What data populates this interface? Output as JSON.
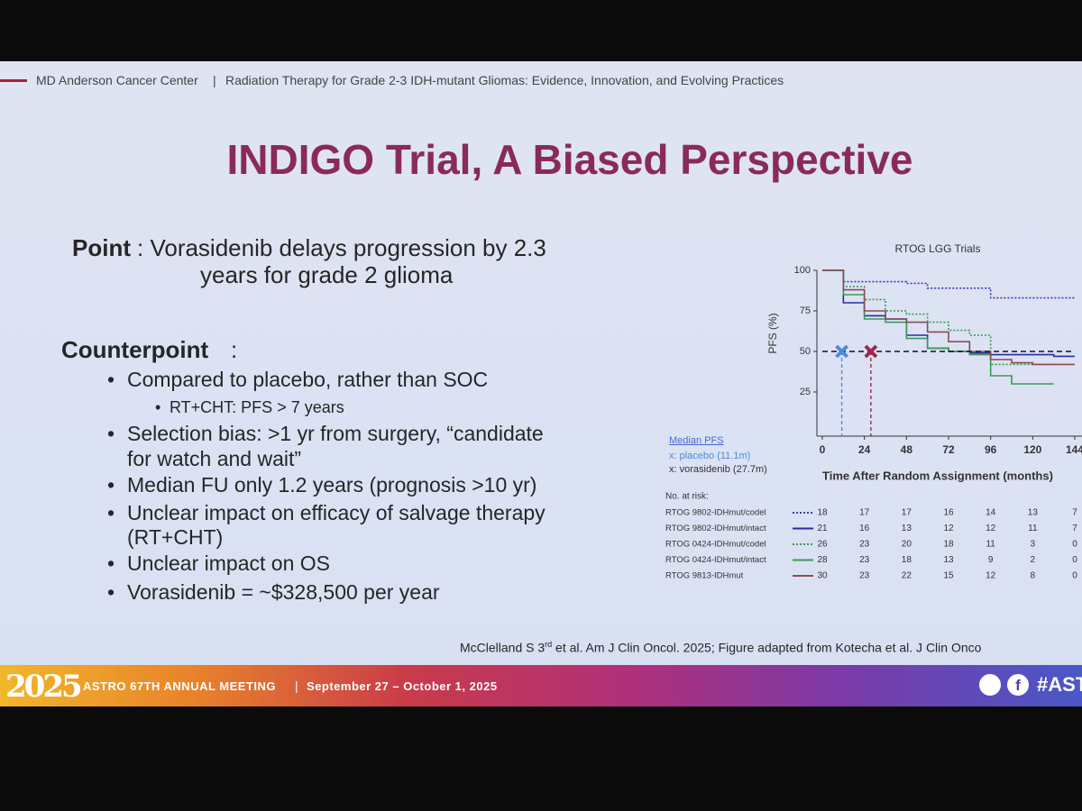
{
  "header": {
    "org": "MD Anderson Cancer Center",
    "separator": "|",
    "course": "Radiation Therapy for Grade 2-3 IDH-mutant Gliomas: Evidence, Innovation, and Evolving Practices"
  },
  "title": "INDIGO Trial, A Biased Perspective",
  "point": {
    "label": "Point",
    "lines": [
      ": Vorasidenib delays progression by 2.3",
      "years for grade 2 glioma"
    ]
  },
  "counterpoint": {
    "label": "Counterpoint",
    "colon": ":",
    "bullets": [
      {
        "lines": [
          "Compared to placebo, rather than SOC"
        ],
        "sub": [
          "RT+CHT: PFS > 7 years"
        ]
      },
      {
        "lines": [
          "Selection bias: >1 yr from surgery, “candidate",
          "for watch and wait”"
        ]
      },
      {
        "lines": [
          "Median FU only 1.2 years (prognosis >10 yr)"
        ]
      },
      {
        "lines": [
          "Unclear impact on efficacy of salvage therapy",
          "(RT+CHT)"
        ]
      },
      {
        "lines": [
          "Unclear impact on OS"
        ]
      },
      {
        "lines": [
          "Vorasidenib = ~$328,500 per year"
        ]
      }
    ]
  },
  "figure": {
    "title": "RTOG LGG Trials",
    "ylabel": "PFS (%)",
    "xlabel": "Time After Random Assignment (months)",
    "ylim": [
      0,
      100
    ],
    "yticks": [
      25,
      50,
      75,
      100
    ],
    "xlim": [
      0,
      144
    ],
    "xticks": [
      0,
      24,
      48,
      72,
      96,
      120,
      144
    ],
    "x": [
      0,
      12,
      24,
      36,
      48,
      60,
      72,
      84,
      96,
      108,
      120,
      132,
      144
    ],
    "series": [
      {
        "name": "RTOG 9802-IDHmut/codel",
        "color": "#3a3ab8",
        "dash": "2 2",
        "values": [
          100,
          93,
          93,
          93,
          92,
          89,
          89,
          89,
          83,
          83,
          83,
          83,
          83
        ],
        "at_risk": [
          "18",
          "17",
          "17",
          "16",
          "14",
          "13",
          "7"
        ]
      },
      {
        "name": "RTOG 9802-IDHmut/intact",
        "color": "#2a2aa8",
        "dash": "",
        "values": [
          100,
          80,
          72,
          70,
          60,
          52,
          50,
          49,
          48,
          48,
          48,
          47,
          47
        ],
        "at_risk": [
          "21",
          "16",
          "13",
          "12",
          "12",
          "11",
          "7"
        ]
      },
      {
        "name": "RTOG 0424-IDHmut/codel",
        "color": "#3a9a4a",
        "dash": "2 2",
        "values": [
          100,
          90,
          82,
          75,
          73,
          68,
          63,
          60,
          42,
          42,
          42,
          42,
          null
        ],
        "at_risk": [
          "26",
          "23",
          "20",
          "18",
          "11",
          "3",
          "0"
        ]
      },
      {
        "name": "RTOG 0424-IDHmut/intact",
        "color": "#3a9a5a",
        "dash": "",
        "values": [
          100,
          85,
          70,
          68,
          58,
          52,
          50,
          48,
          35,
          30,
          30,
          30,
          null
        ],
        "at_risk": [
          "28",
          "23",
          "18",
          "13",
          "9",
          "2",
          "0"
        ]
      },
      {
        "name": "RTOG 9813-IDHmut",
        "color": "#8a4a5a",
        "dash": "",
        "values": [
          100,
          88,
          75,
          70,
          68,
          62,
          56,
          50,
          45,
          43,
          42,
          42,
          42
        ],
        "at_risk": [
          "30",
          "23",
          "22",
          "15",
          "12",
          "8",
          "0"
        ]
      }
    ],
    "at_risk_label": "No. at risk:",
    "median": {
      "title": "Median PFS",
      "reference": 50,
      "markers": [
        {
          "label": "x: placebo (11.1m)",
          "x": 11.1,
          "color": "#4a8ae0"
        },
        {
          "label": "x: vorasidenib (27.7m)",
          "x": 27.7,
          "color": "#9a2a4a"
        }
      ]
    }
  },
  "citation": {
    "pre": "McClelland S 3",
    "sup": "rd",
    "post": " et al. Am J Clin Oncol. 2025; Figure adapted from Kotecha et al. J Clin Onco"
  },
  "footer": {
    "logo": "2025",
    "meeting": "ASTRO 67TH ANNUAL MEETING",
    "separator": "|",
    "dates": "September 27 – October 1, 2025",
    "social": "f",
    "hashtag": "#ASTR"
  }
}
